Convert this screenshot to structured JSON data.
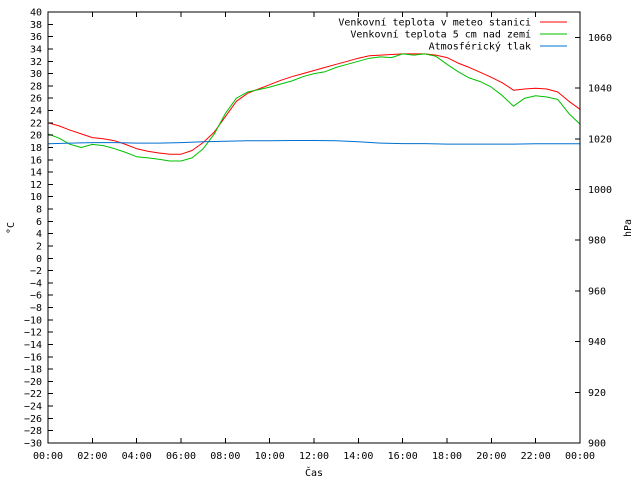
{
  "chart_data": {
    "type": "line",
    "title": "",
    "xlabel": "Čas",
    "ylabel": "°C",
    "y2label": "hPa",
    "xlim": [
      0,
      24
    ],
    "ylim": [
      -30,
      40
    ],
    "y2lim": [
      900,
      1070
    ],
    "grid": false,
    "legend_position": "top-right",
    "x_ticks": [
      "00:00",
      "02:00",
      "04:00",
      "06:00",
      "08:00",
      "10:00",
      "12:00",
      "14:00",
      "16:00",
      "18:00",
      "20:00",
      "22:00",
      "00:00"
    ],
    "y_ticks": [
      -30,
      -28,
      -26,
      -24,
      -22,
      -20,
      -18,
      -16,
      -14,
      -12,
      -10,
      -8,
      -6,
      -4,
      -2,
      0,
      2,
      4,
      6,
      8,
      10,
      12,
      14,
      16,
      18,
      20,
      22,
      24,
      26,
      28,
      30,
      32,
      34,
      36,
      38,
      40
    ],
    "y2_ticks": [
      900,
      920,
      940,
      960,
      980,
      1000,
      1020,
      1040,
      1060
    ],
    "series": [
      {
        "name": "Venkovní teplota v meteo stanici",
        "axis": "left",
        "color": "#ff0000",
        "x": [
          0,
          0.5,
          1,
          1.5,
          2,
          2.5,
          3,
          3.5,
          4,
          4.5,
          5,
          5.5,
          6,
          6.5,
          7,
          7.5,
          8,
          8.5,
          9,
          9.5,
          10,
          10.5,
          11,
          11.5,
          12,
          12.5,
          13,
          13.5,
          14,
          14.5,
          15,
          15.5,
          16,
          16.5,
          17,
          17.5,
          18,
          18.5,
          19,
          19.5,
          20,
          20.5,
          21,
          21.5,
          22,
          22.5,
          23,
          23.5,
          24
        ],
        "values": [
          22,
          21.5,
          20.8,
          20.2,
          19.6,
          19.4,
          19.1,
          18.5,
          17.8,
          17.4,
          17.1,
          16.9,
          16.9,
          17.5,
          18.8,
          20.5,
          23,
          25.5,
          26.8,
          27.5,
          28.2,
          28.9,
          29.5,
          30,
          30.5,
          31,
          31.5,
          32,
          32.5,
          32.9,
          33,
          33.1,
          33.2,
          33.2,
          33.2,
          33,
          32.6,
          31.7,
          31,
          30.2,
          29.4,
          28.5,
          27.3,
          27.5,
          27.6,
          27.5,
          27,
          25.5,
          24.2
        ]
      },
      {
        "name": "Venkovní teplota 5 cm nad zemí",
        "axis": "left",
        "color": "#00c000",
        "x": [
          0,
          0.5,
          1,
          1.5,
          2,
          2.5,
          3,
          3.5,
          4,
          4.5,
          5,
          5.5,
          6,
          6.5,
          7,
          7.5,
          8,
          8.5,
          9,
          9.5,
          10,
          10.5,
          11,
          11.5,
          12,
          12.5,
          13,
          13.5,
          14,
          14.5,
          15,
          15.5,
          16,
          16.5,
          17,
          17.5,
          18,
          18.5,
          19,
          19.5,
          20,
          20.5,
          21,
          21.5,
          22,
          22.5,
          23,
          23.5,
          24
        ],
        "values": [
          20.2,
          19.5,
          18.5,
          18,
          18.5,
          18.3,
          17.8,
          17.2,
          16.5,
          16.3,
          16.1,
          15.8,
          15.8,
          16.3,
          17.8,
          20.2,
          23.5,
          26,
          27,
          27.4,
          27.8,
          28.3,
          28.8,
          29.5,
          30,
          30.3,
          31,
          31.5,
          32,
          32.5,
          32.7,
          32.6,
          33.2,
          33,
          33.2,
          32.8,
          31.5,
          30.3,
          29.3,
          28.7,
          27.8,
          26.4,
          24.7,
          26,
          26.4,
          26.2,
          25.8,
          23.5,
          21.8
        ]
      },
      {
        "name": "Atmosférický tlak",
        "axis": "right",
        "color": "#0070d0",
        "x": [
          0,
          1,
          2,
          3,
          4,
          5,
          6,
          7,
          8,
          9,
          10,
          11,
          12,
          13,
          14,
          15,
          16,
          17,
          18,
          19,
          20,
          21,
          22,
          23,
          24
        ],
        "values": [
          1018,
          1018.3,
          1018.5,
          1018.5,
          1018.3,
          1018.3,
          1018.5,
          1018.8,
          1019,
          1019.2,
          1019.2,
          1019.3,
          1019.3,
          1019.2,
          1018.8,
          1018.3,
          1018.1,
          1018.1,
          1017.9,
          1017.9,
          1017.9,
          1017.9,
          1018,
          1018,
          1018
        ]
      }
    ]
  }
}
